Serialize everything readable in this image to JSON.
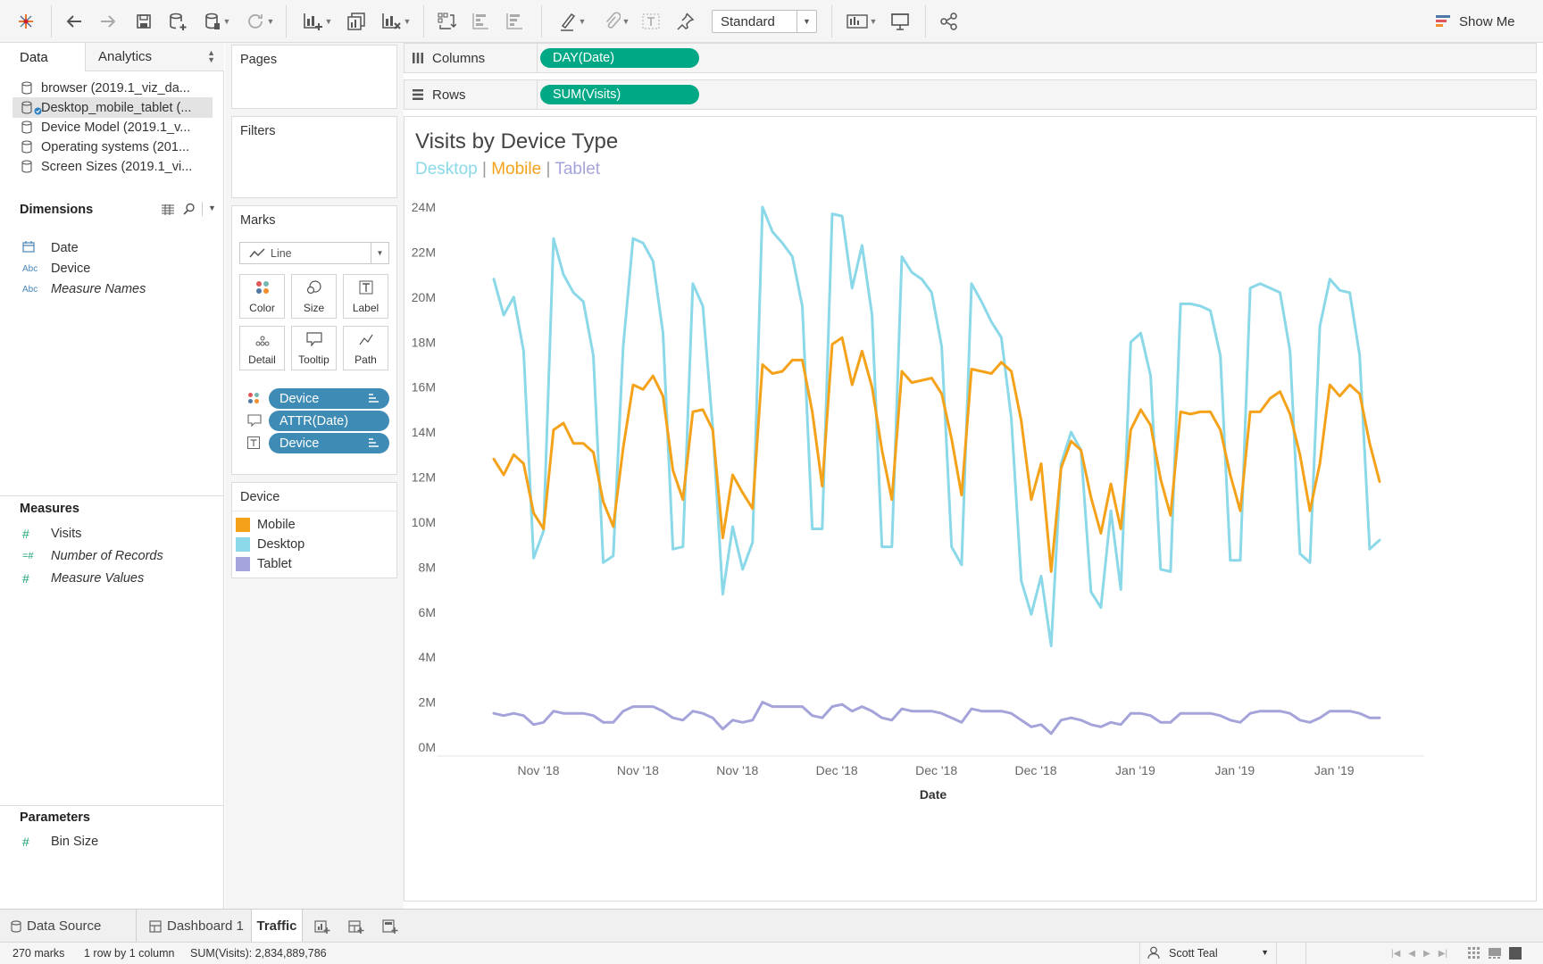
{
  "toolbar": {
    "fit": "Standard",
    "show_me": "Show Me"
  },
  "data_pane": {
    "tabs": [
      "Data",
      "Analytics"
    ],
    "datasources": [
      {
        "label": "browser (2019.1_viz_da...",
        "selected": false
      },
      {
        "label": "Desktop_mobile_tablet (...",
        "selected": true
      },
      {
        "label": "Device Model (2019.1_v...",
        "selected": false
      },
      {
        "label": "Operating systems (201...",
        "selected": false
      },
      {
        "label": "Screen Sizes (2019.1_vi...",
        "selected": false
      }
    ],
    "dimensions_title": "Dimensions",
    "dimensions": [
      {
        "label": "Date",
        "icon": "calendar-icon",
        "italic": false
      },
      {
        "label": "Device",
        "icon": "Abc",
        "italic": false
      },
      {
        "label": "Measure Names",
        "icon": "Abc",
        "italic": true
      }
    ],
    "measures_title": "Measures",
    "measures": [
      {
        "label": "Visits",
        "italic": false
      },
      {
        "label": "Number of Records",
        "italic": true
      },
      {
        "label": "Measure Values",
        "italic": true
      }
    ],
    "parameters_title": "Parameters",
    "parameters": [
      {
        "label": "Bin Size"
      }
    ]
  },
  "cards": {
    "pages": "Pages",
    "filters": "Filters",
    "marks": "Marks",
    "mark_type": "Line",
    "mark_buttons": [
      "Color",
      "Size",
      "Label",
      "Detail",
      "Tooltip",
      "Path"
    ],
    "mark_pills": [
      "Device",
      "ATTR(Date)",
      "Device"
    ],
    "legend_title": "Device",
    "legend": [
      {
        "label": "Mobile",
        "color": "#f5a21b"
      },
      {
        "label": "Desktop",
        "color": "#8ad8e8"
      },
      {
        "label": "Tablet",
        "color": "#a5a4da"
      }
    ]
  },
  "shelves": {
    "columns_label": "Columns",
    "columns_pill": "DAY(Date)",
    "rows_label": "Rows",
    "rows_pill": "SUM(Visits)"
  },
  "viz": {
    "title": "Visits by Device Type",
    "subtitle": [
      {
        "text": "Desktop",
        "color": "#8ad8e8"
      },
      {
        "text": "Mobile",
        "color": "#f5a21b"
      },
      {
        "text": "Tablet",
        "color": "#a5a4da"
      }
    ],
    "separator": "|"
  },
  "chart_data": {
    "type": "line",
    "xlabel": "Date",
    "ylabel": "",
    "ylim": [
      0,
      24
    ],
    "y_unit": "M",
    "y_ticks": [
      "0M",
      "2M",
      "4M",
      "6M",
      "8M",
      "10M",
      "12M",
      "14M",
      "16M",
      "18M",
      "20M",
      "22M",
      "24M"
    ],
    "x_tick_labels": [
      "Nov '18",
      "Nov '18",
      "Nov '18",
      "Dec '18",
      "Dec '18",
      "Dec '18",
      "Jan '19",
      "Jan '19",
      "Jan '19"
    ],
    "grid": false,
    "series": [
      {
        "name": "Desktop",
        "color": "#8ad8e8",
        "values": [
          20.8,
          19.2,
          20.0,
          17.6,
          8.4,
          9.6,
          22.6,
          21.0,
          20.2,
          19.8,
          17.4,
          8.2,
          8.5,
          17.8,
          22.6,
          22.4,
          21.6,
          18.4,
          8.8,
          8.9,
          20.6,
          19.6,
          14.2,
          6.8,
          9.8,
          7.9,
          9.1,
          24.0,
          22.9,
          22.4,
          21.8,
          19.6,
          9.7,
          9.7,
          23.7,
          23.6,
          20.4,
          22.3,
          19.2,
          8.9,
          8.9,
          21.8,
          21.1,
          20.8,
          20.2,
          17.8,
          8.9,
          8.1,
          20.6,
          19.8,
          18.9,
          18.2,
          14.6,
          7.4,
          5.9,
          7.6,
          4.5,
          12.6,
          14.0,
          13.2,
          6.9,
          6.2,
          10.5,
          7.0,
          18.0,
          18.4,
          16.5,
          7.9,
          7.8,
          19.7,
          19.7,
          19.6,
          19.4,
          17.4,
          8.3,
          8.3,
          20.4,
          20.6,
          20.4,
          20.2,
          17.6,
          8.6,
          8.2,
          18.7,
          20.8,
          20.3,
          20.2,
          17.4,
          8.8,
          9.2
        ]
      },
      {
        "name": "Mobile",
        "color": "#f5a21b",
        "values": [
          12.8,
          12.1,
          13.0,
          12.6,
          10.4,
          9.7,
          14.1,
          14.4,
          13.5,
          13.5,
          13.1,
          10.9,
          9.8,
          13.3,
          16.1,
          15.9,
          16.5,
          15.6,
          12.3,
          11.0,
          14.9,
          15.0,
          14.1,
          9.3,
          12.1,
          11.3,
          10.6,
          17.0,
          16.6,
          16.7,
          17.2,
          17.2,
          14.9,
          11.6,
          17.9,
          18.2,
          16.1,
          17.6,
          16.0,
          13.2,
          11.0,
          16.7,
          16.2,
          16.3,
          16.4,
          15.7,
          13.7,
          11.2,
          16.8,
          16.7,
          16.6,
          17.1,
          16.7,
          14.5,
          11.0,
          12.6,
          7.8,
          12.4,
          13.6,
          13.2,
          11.1,
          9.5,
          11.7,
          9.7,
          14.1,
          15.0,
          14.3,
          11.9,
          10.3,
          14.9,
          14.8,
          14.9,
          14.9,
          14.1,
          12.1,
          10.5,
          14.9,
          14.9,
          15.5,
          15.8,
          14.8,
          13.0,
          10.5,
          12.6,
          16.1,
          15.6,
          16.1,
          15.7,
          13.5,
          11.8
        ]
      },
      {
        "name": "Tablet",
        "color": "#a5a4da",
        "values": [
          1.5,
          1.4,
          1.5,
          1.4,
          1.0,
          1.1,
          1.6,
          1.5,
          1.5,
          1.5,
          1.4,
          1.1,
          1.1,
          1.6,
          1.8,
          1.8,
          1.8,
          1.6,
          1.3,
          1.2,
          1.6,
          1.5,
          1.3,
          0.8,
          1.2,
          1.1,
          1.2,
          2.0,
          1.8,
          1.8,
          1.8,
          1.8,
          1.4,
          1.3,
          1.8,
          1.9,
          1.6,
          1.8,
          1.6,
          1.3,
          1.2,
          1.7,
          1.6,
          1.6,
          1.6,
          1.5,
          1.3,
          1.1,
          1.7,
          1.6,
          1.6,
          1.6,
          1.5,
          1.2,
          0.9,
          1.0,
          0.6,
          1.2,
          1.3,
          1.2,
          1.0,
          0.9,
          1.1,
          1.0,
          1.5,
          1.5,
          1.4,
          1.1,
          1.1,
          1.5,
          1.5,
          1.5,
          1.5,
          1.4,
          1.2,
          1.1,
          1.5,
          1.6,
          1.6,
          1.6,
          1.5,
          1.2,
          1.1,
          1.3,
          1.6,
          1.6,
          1.6,
          1.5,
          1.3,
          1.3
        ]
      }
    ]
  },
  "bottom_tabs": {
    "data_source": "Data Source",
    "dashboard": "Dashboard 1",
    "active": "Traffic"
  },
  "status": {
    "marks": "270 marks",
    "rows_cols": "1 row by 1 column",
    "sum": "SUM(Visits): 2,834,889,786",
    "user": "Scott Teal"
  }
}
